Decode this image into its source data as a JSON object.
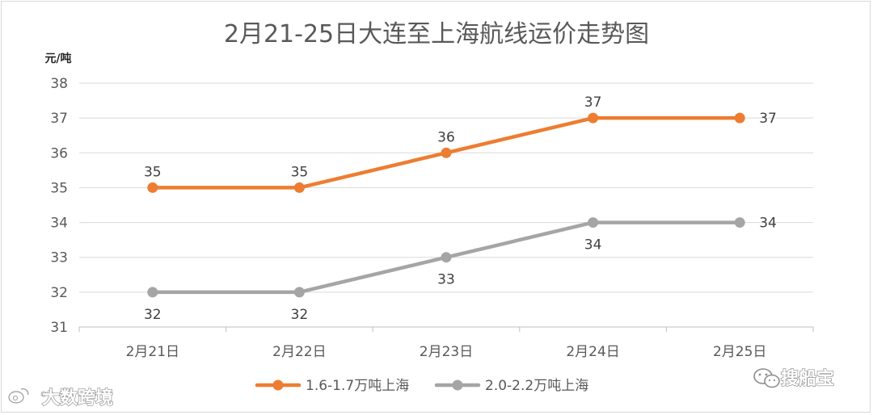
{
  "chart_data": {
    "type": "line",
    "title": "2月21-25日大连至上海航线运价走势图",
    "ylabel": "元/吨",
    "xlabel": "",
    "categories": [
      "2月21日",
      "2月22日",
      "2月23日",
      "2月24日",
      "2月25日"
    ],
    "ylim": [
      31,
      38
    ],
    "yticks": [
      31,
      32,
      33,
      34,
      35,
      36,
      37,
      38
    ],
    "grid": true,
    "legend_position": "bottom",
    "series": [
      {
        "name": "1.6-1.7万吨上海",
        "values": [
          35,
          35,
          36,
          37,
          37
        ],
        "color": "#ED7D31",
        "label_position": "above"
      },
      {
        "name": "2.0-2.2万吨上海",
        "values": [
          32,
          32,
          33,
          34,
          34
        ],
        "color": "#A5A5A5",
        "label_position": "below"
      }
    ]
  },
  "colors": {
    "gridline": "#d9d9d9",
    "axis": "#bfbfbf"
  },
  "watermarks": {
    "left": "大数跨境",
    "right": "搜船宝",
    "left_icon": "weibo-icon",
    "right_icon": "wechat-icon"
  }
}
